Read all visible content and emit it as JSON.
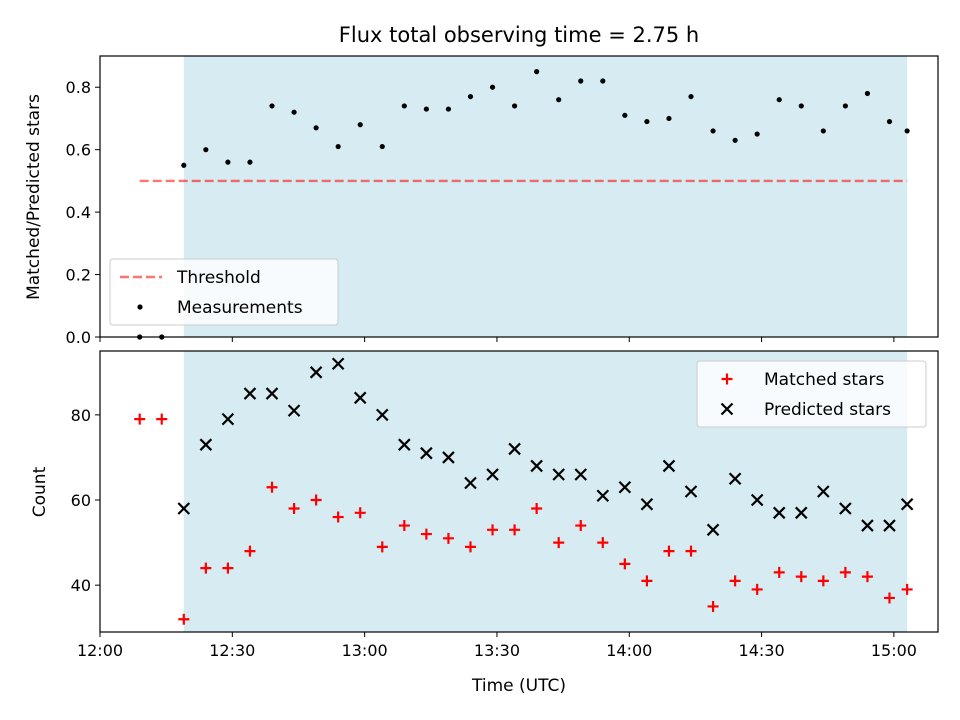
{
  "figure": {
    "title": "Flux total observing time = 2.75 h"
  },
  "colors": {
    "shade": "#add8e6",
    "threshold": "#ff0000",
    "measurements": "#000000",
    "matched": "#ff0000",
    "predicted": "#000000"
  },
  "chart_data": [
    {
      "type": "scatter",
      "panel": "top",
      "ylabel": "Matched/Predicted stars",
      "xlabel": "",
      "xlim": [
        "12:00",
        "15:10"
      ],
      "ylim": [
        0,
        0.9
      ],
      "yticks": [
        0.0,
        0.2,
        0.4,
        0.6,
        0.8
      ],
      "ytick_labels": [
        "0.0",
        "0.2",
        "0.4",
        "0.6",
        "0.8"
      ],
      "shaded_span": [
        "12:19",
        "15:03"
      ],
      "threshold": {
        "name": "Threshold",
        "value": 0.5,
        "x_range": [
          "12:09",
          "15:03"
        ]
      },
      "legend": {
        "position": "lower-left",
        "entries": [
          "Threshold",
          "Measurements"
        ]
      },
      "series": [
        {
          "name": "Measurements",
          "marker": "dot",
          "times": [
            "12:09",
            "12:14",
            "12:19",
            "12:24",
            "12:29",
            "12:34",
            "12:39",
            "12:44",
            "12:49",
            "12:54",
            "12:59",
            "13:04",
            "13:09",
            "13:14",
            "13:19",
            "13:24",
            "13:29",
            "13:34",
            "13:39",
            "13:44",
            "13:49",
            "13:54",
            "13:59",
            "14:04",
            "14:09",
            "14:14",
            "14:19",
            "14:24",
            "14:29",
            "14:34",
            "14:39",
            "14:44",
            "14:49",
            "14:54",
            "14:59",
            "15:03"
          ],
          "values": [
            0.0,
            0.0,
            0.55,
            0.6,
            0.56,
            0.56,
            0.74,
            0.72,
            0.67,
            0.61,
            0.68,
            0.61,
            0.74,
            0.73,
            0.73,
            0.77,
            0.8,
            0.74,
            0.85,
            0.76,
            0.82,
            0.82,
            0.71,
            0.69,
            0.7,
            0.77,
            0.66,
            0.63,
            0.65,
            0.76,
            0.74,
            0.66,
            0.74,
            0.78,
            0.69,
            0.66
          ]
        }
      ]
    },
    {
      "type": "scatter",
      "panel": "bottom",
      "ylabel": "Count",
      "xlabel": "Time (UTC)",
      "xlim": [
        "12:00",
        "15:10"
      ],
      "ylim": [
        29,
        95
      ],
      "yticks": [
        40,
        60,
        80
      ],
      "ytick_labels": [
        "40",
        "60",
        "80"
      ],
      "xticks": [
        "12:00",
        "12:30",
        "13:00",
        "13:30",
        "14:00",
        "14:30",
        "15:00"
      ],
      "xtick_labels": [
        "12:00",
        "12:30",
        "13:00",
        "13:30",
        "14:00",
        "14:30",
        "15:00"
      ],
      "shaded_span": [
        "12:19",
        "15:03"
      ],
      "legend": {
        "position": "upper-right",
        "entries": [
          "Matched stars",
          "Predicted stars"
        ]
      },
      "series": [
        {
          "name": "Matched stars",
          "marker": "plus",
          "times": [
            "12:09",
            "12:14",
            "12:19",
            "12:24",
            "12:29",
            "12:34",
            "12:39",
            "12:44",
            "12:49",
            "12:54",
            "12:59",
            "13:04",
            "13:09",
            "13:14",
            "13:19",
            "13:24",
            "13:29",
            "13:34",
            "13:39",
            "13:44",
            "13:49",
            "13:54",
            "13:59",
            "14:04",
            "14:09",
            "14:14",
            "14:19",
            "14:24",
            "14:29",
            "14:34",
            "14:39",
            "14:44",
            "14:49",
            "14:54",
            "14:59",
            "15:03"
          ],
          "values": [
            79,
            79,
            32,
            44,
            44,
            48,
            63,
            58,
            60,
            56,
            57,
            49,
            54,
            52,
            51,
            49,
            53,
            53,
            58,
            50,
            54,
            50,
            45,
            41,
            48,
            48,
            35,
            41,
            39,
            43,
            42,
            41,
            43,
            42,
            37,
            39
          ]
        },
        {
          "name": "Predicted stars",
          "marker": "x",
          "times": [
            "12:19",
            "12:24",
            "12:29",
            "12:34",
            "12:39",
            "12:44",
            "12:49",
            "12:54",
            "12:59",
            "13:04",
            "13:09",
            "13:14",
            "13:19",
            "13:24",
            "13:29",
            "13:34",
            "13:39",
            "13:44",
            "13:49",
            "13:54",
            "13:59",
            "14:04",
            "14:09",
            "14:14",
            "14:19",
            "14:24",
            "14:29",
            "14:34",
            "14:39",
            "14:44",
            "14:49",
            "14:54",
            "14:59",
            "15:03"
          ],
          "values": [
            58,
            73,
            79,
            85,
            85,
            81,
            90,
            92,
            84,
            80,
            73,
            71,
            70,
            64,
            66,
            72,
            68,
            66,
            66,
            61,
            63,
            59,
            68,
            62,
            53,
            65,
            60,
            57,
            57,
            62,
            58,
            54,
            54,
            59
          ]
        }
      ]
    }
  ]
}
